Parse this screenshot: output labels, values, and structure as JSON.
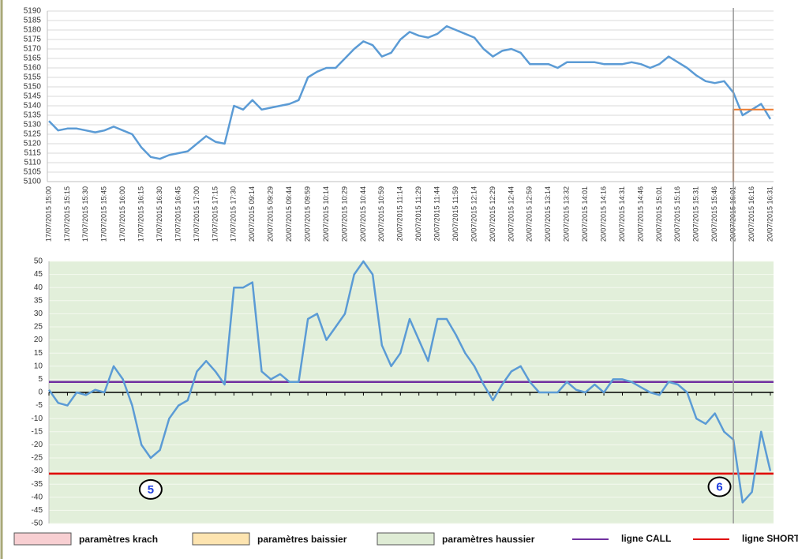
{
  "chart_data": [
    {
      "type": "line",
      "categories": [
        "17/07/2015 15:00",
        null,
        "17/07/2015 15:15",
        null,
        "17/07/2015 15:30",
        null,
        "17/07/2015 15:45",
        null,
        "17/07/2015 16:00",
        null,
        "17/07/2015 16:15",
        null,
        "17/07/2015 16:30",
        null,
        "17/07/2015 16:45",
        null,
        "17/07/2015 17:00",
        null,
        "17/07/2015 17:15",
        null,
        "17/07/2015 17:30",
        null,
        "20/07/2015 09:14",
        null,
        "20/07/2015 09:29",
        null,
        "20/07/2015 09:44",
        null,
        "20/07/2015 09:59",
        null,
        "20/07/2015 10:14",
        null,
        "20/07/2015 10:29",
        null,
        "20/07/2015 10:44",
        null,
        "20/07/2015 10:59",
        null,
        "20/07/2015 11:14",
        null,
        "20/07/2015 11:29",
        null,
        "20/07/2015 11:44",
        null,
        "20/07/2015 11:59",
        null,
        "20/07/2015 12:14",
        null,
        "20/07/2015 12:29",
        null,
        "20/07/2015 12:44",
        null,
        "20/07/2015 12:59",
        null,
        "20/07/2015 13:14",
        null,
        "20/07/2015 13:32",
        null,
        "20/07/2015 14:01",
        null,
        "20/07/2015 14:16",
        null,
        "20/07/2015 14:31",
        null,
        "20/07/2015 14:46",
        null,
        "20/07/2015 15:01",
        null,
        "20/07/2015 15:16",
        null,
        "20/07/2015 15:31",
        null,
        "20/07/2015 15:46",
        null,
        "20/07/2015 16:01",
        null,
        "20/07/2015 16:16",
        null,
        "20/07/2015 16:31"
      ],
      "values": [
        5132,
        5127,
        5128,
        5128,
        5127,
        5126,
        5127,
        5129,
        5127,
        5125,
        5118,
        5113,
        5112,
        5114,
        5115,
        5116,
        5120,
        5124,
        5121,
        5120,
        5140,
        5138,
        5143,
        5138,
        5139,
        5140,
        5141,
        5143,
        5155,
        5158,
        5160,
        5160,
        5165,
        5170,
        5174,
        5172,
        5166,
        5168,
        5175,
        5179,
        5177,
        5176,
        5178,
        5182,
        5180,
        5178,
        5176,
        5170,
        5166,
        5169,
        5170,
        5168,
        5162,
        5162,
        5162,
        5160,
        5163,
        5163,
        5163,
        5163,
        5162,
        5162,
        5162,
        5163,
        5162,
        5160,
        5162,
        5166,
        5163,
        5160,
        5156,
        5153,
        5152,
        5153,
        5147,
        5135,
        5138,
        5141,
        5133
      ],
      "color": "#5b9bd5",
      "ylim": [
        5100,
        5190
      ],
      "yticks": [
        5100,
        5105,
        5110,
        5115,
        5120,
        5125,
        5130,
        5135,
        5140,
        5145,
        5150,
        5155,
        5160,
        5165,
        5170,
        5175,
        5180,
        5185,
        5190
      ],
      "grid": true,
      "reference": {
        "value": 5138,
        "start_index": 74,
        "color": "#ed7d31"
      },
      "marker_index": 74,
      "marker_color": "#999999"
    },
    {
      "type": "line",
      "values": [
        1,
        -4,
        -5,
        0,
        -1,
        1,
        0,
        10,
        5,
        -5,
        -20,
        -25,
        -22,
        -10,
        -5,
        -3,
        8,
        12,
        8,
        3,
        40,
        40,
        42,
        8,
        5,
        7,
        4,
        4,
        28,
        30,
        20,
        25,
        30,
        45,
        50,
        45,
        18,
        10,
        15,
        28,
        20,
        12,
        28,
        28,
        22,
        15,
        10,
        3,
        -3,
        3,
        8,
        10,
        4,
        0,
        0,
        0,
        4,
        1,
        0,
        3,
        0,
        5,
        5,
        4,
        2,
        0,
        -1,
        4,
        3,
        0,
        -10,
        -12,
        -8,
        -15,
        -18,
        -42,
        -38,
        -15,
        -30
      ],
      "color": "#5b9bd5",
      "ylim": [
        -50,
        50
      ],
      "yticks": [
        -50,
        -45,
        -40,
        -35,
        -30,
        -25,
        -20,
        -15,
        -10,
        -5,
        0,
        5,
        10,
        15,
        20,
        25,
        30,
        35,
        40,
        45,
        50
      ],
      "grid": true,
      "plot_background": "#e2efda",
      "lines": [
        {
          "name": "ligne CALL",
          "value": 4,
          "color": "#7030a0"
        },
        {
          "name": "ligne SHORT",
          "value": -31,
          "color": "#e00000"
        }
      ],
      "zones": [
        {
          "name": "paramètres krach",
          "color": "#f8cfd2"
        },
        {
          "name": "paramètres baissier",
          "color": "#fde4b0"
        },
        {
          "name": "paramètres haussier",
          "color": "#dfecd5"
        }
      ],
      "annotations": [
        {
          "text": "5",
          "index": 11,
          "y": -37
        },
        {
          "text": "6",
          "index": 72.5,
          "y": -36
        }
      ]
    }
  ]
}
